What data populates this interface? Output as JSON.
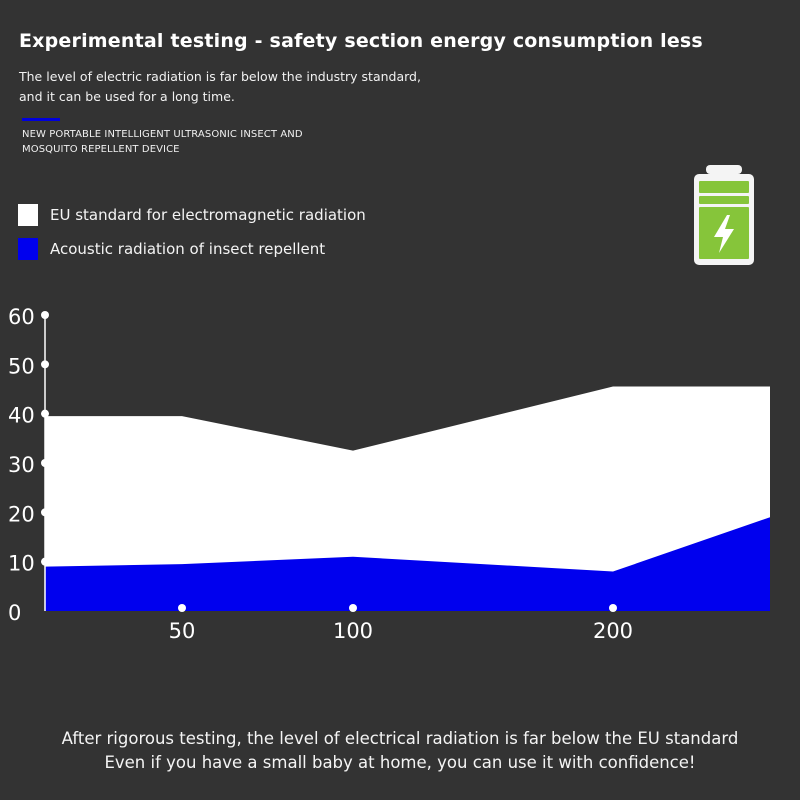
{
  "header": {
    "title": "Experimental testing - safety section energy consumption less",
    "subtitle_line1": "The level of electric radiation is far below the industry standard,",
    "subtitle_line2": "and it can be used for a long time."
  },
  "device": {
    "line1": "NEW PORTABLE INTELLIGENT ULTRASONIC INSECT AND",
    "line2": "MOSQUITO  REPELLENT DEVICE",
    "color": "#0000dd"
  },
  "legend": [
    {
      "label": "EU standard for electromagnetic radiation",
      "color": "#ffffff"
    },
    {
      "label": "Acoustic radiation of insect repellent",
      "color": "#0000ee"
    }
  ],
  "battery_icon": "battery-charging-icon",
  "chart_data": {
    "type": "area",
    "y_ticks": [
      0,
      10,
      20,
      30,
      40,
      50,
      60
    ],
    "ylim": [
      0,
      60
    ],
    "x_ticks": [
      "50",
      "100",
      "200"
    ],
    "grid": false,
    "series": [
      {
        "name": "EU standard for electromagnetic radiation",
        "color": "#ffffff",
        "x": [
          "start",
          "50",
          "100",
          "200",
          "end"
        ],
        "values": [
          39.5,
          39.5,
          32.5,
          45.5,
          45.5
        ]
      },
      {
        "name": "Acoustic radiation of insect repellent",
        "color": "#0000ee",
        "x": [
          "start",
          "50",
          "100",
          "200",
          "end"
        ],
        "values": [
          9,
          9.5,
          11,
          8,
          19
        ]
      }
    ]
  },
  "footer": {
    "line1": "After rigorous testing, the level of electrical radiation is far below the EU standard",
    "line2": "Even if you have a small baby at home, you can use it with confidence!"
  }
}
